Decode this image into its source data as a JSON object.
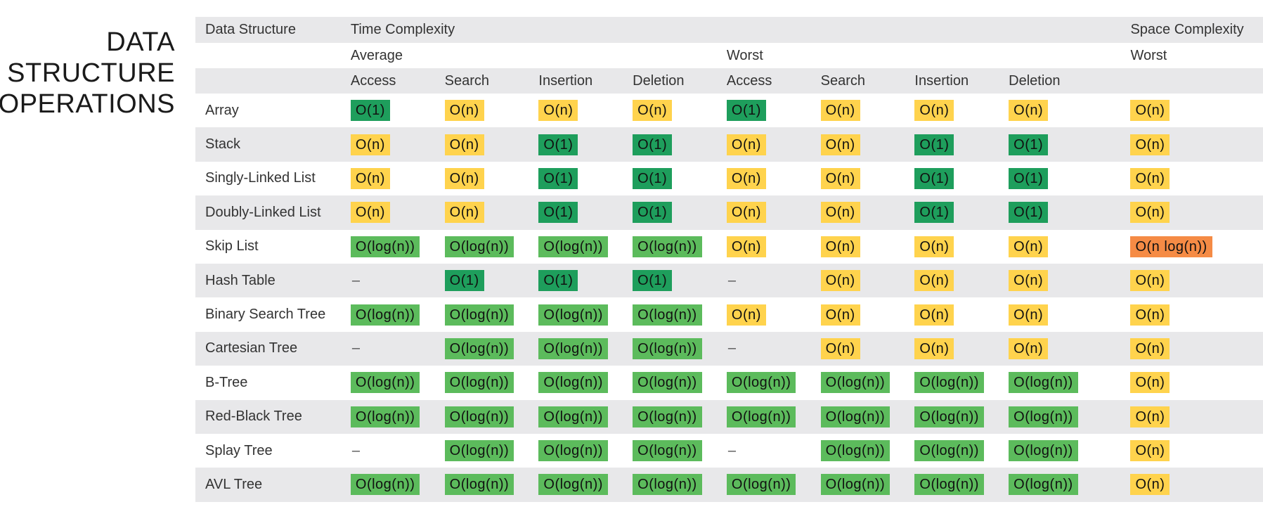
{
  "side_title": [
    "DATA",
    "STRUCTURE",
    "OPERATIONS"
  ],
  "header": {
    "data_structure": "Data Structure",
    "time_complexity": "Time Complexity",
    "space_complexity": "Space Complexity",
    "average": "Average",
    "worst": "Worst",
    "space_worst": "Worst",
    "ops": [
      "Access",
      "Search",
      "Insertion",
      "Deletion",
      "Access",
      "Search",
      "Insertion",
      "Deletion"
    ]
  },
  "colors": {
    "excellent": "#1e9e5c",
    "good": "#5cbb5c",
    "fair": "#ffd34d",
    "bad": "#f58b45",
    "row_shade": "#e8e8ea"
  },
  "rows": [
    {
      "name": "Array",
      "cells": [
        [
          "O(1)",
          "g1"
        ],
        [
          "O(n)",
          "y"
        ],
        [
          "O(n)",
          "y"
        ],
        [
          "O(n)",
          "y"
        ],
        [
          "O(1)",
          "g1"
        ],
        [
          "O(n)",
          "y"
        ],
        [
          "O(n)",
          "y"
        ],
        [
          "O(n)",
          "y"
        ],
        [
          "O(n)",
          "y"
        ]
      ]
    },
    {
      "name": "Stack",
      "cells": [
        [
          "O(n)",
          "y"
        ],
        [
          "O(n)",
          "y"
        ],
        [
          "O(1)",
          "g1"
        ],
        [
          "O(1)",
          "g1"
        ],
        [
          "O(n)",
          "y"
        ],
        [
          "O(n)",
          "y"
        ],
        [
          "O(1)",
          "g1"
        ],
        [
          "O(1)",
          "g1"
        ],
        [
          "O(n)",
          "y"
        ]
      ]
    },
    {
      "name": "Singly-Linked List",
      "cells": [
        [
          "O(n)",
          "y"
        ],
        [
          "O(n)",
          "y"
        ],
        [
          "O(1)",
          "g1"
        ],
        [
          "O(1)",
          "g1"
        ],
        [
          "O(n)",
          "y"
        ],
        [
          "O(n)",
          "y"
        ],
        [
          "O(1)",
          "g1"
        ],
        [
          "O(1)",
          "g1"
        ],
        [
          "O(n)",
          "y"
        ]
      ]
    },
    {
      "name": "Doubly-Linked List",
      "cells": [
        [
          "O(n)",
          "y"
        ],
        [
          "O(n)",
          "y"
        ],
        [
          "O(1)",
          "g1"
        ],
        [
          "O(1)",
          "g1"
        ],
        [
          "O(n)",
          "y"
        ],
        [
          "O(n)",
          "y"
        ],
        [
          "O(1)",
          "g1"
        ],
        [
          "O(1)",
          "g1"
        ],
        [
          "O(n)",
          "y"
        ]
      ]
    },
    {
      "name": "Skip List",
      "cells": [
        [
          "O(log(n))",
          "g2"
        ],
        [
          "O(log(n))",
          "g2"
        ],
        [
          "O(log(n))",
          "g2"
        ],
        [
          "O(log(n))",
          "g2"
        ],
        [
          "O(n)",
          "y"
        ],
        [
          "O(n)",
          "y"
        ],
        [
          "O(n)",
          "y"
        ],
        [
          "O(n)",
          "y"
        ],
        [
          "O(n log(n))",
          "o"
        ]
      ]
    },
    {
      "name": "Hash Table",
      "cells": [
        [
          "–",
          "dash"
        ],
        [
          "O(1)",
          "g1"
        ],
        [
          "O(1)",
          "g1"
        ],
        [
          "O(1)",
          "g1"
        ],
        [
          "–",
          "dash"
        ],
        [
          "O(n)",
          "y"
        ],
        [
          "O(n)",
          "y"
        ],
        [
          "O(n)",
          "y"
        ],
        [
          "O(n)",
          "y"
        ]
      ]
    },
    {
      "name": "Binary Search Tree",
      "cells": [
        [
          "O(log(n))",
          "g2"
        ],
        [
          "O(log(n))",
          "g2"
        ],
        [
          "O(log(n))",
          "g2"
        ],
        [
          "O(log(n))",
          "g2"
        ],
        [
          "O(n)",
          "y"
        ],
        [
          "O(n)",
          "y"
        ],
        [
          "O(n)",
          "y"
        ],
        [
          "O(n)",
          "y"
        ],
        [
          "O(n)",
          "y"
        ]
      ]
    },
    {
      "name": "Cartesian Tree",
      "cells": [
        [
          "–",
          "dash"
        ],
        [
          "O(log(n))",
          "g2"
        ],
        [
          "O(log(n))",
          "g2"
        ],
        [
          "O(log(n))",
          "g2"
        ],
        [
          "–",
          "dash"
        ],
        [
          "O(n)",
          "y"
        ],
        [
          "O(n)",
          "y"
        ],
        [
          "O(n)",
          "y"
        ],
        [
          "O(n)",
          "y"
        ]
      ]
    },
    {
      "name": "B-Tree",
      "cells": [
        [
          "O(log(n))",
          "g2"
        ],
        [
          "O(log(n))",
          "g2"
        ],
        [
          "O(log(n))",
          "g2"
        ],
        [
          "O(log(n))",
          "g2"
        ],
        [
          "O(log(n))",
          "g2"
        ],
        [
          "O(log(n))",
          "g2"
        ],
        [
          "O(log(n))",
          "g2"
        ],
        [
          "O(log(n))",
          "g2"
        ],
        [
          "O(n)",
          "y"
        ]
      ]
    },
    {
      "name": "Red-Black Tree",
      "cells": [
        [
          "O(log(n))",
          "g2"
        ],
        [
          "O(log(n))",
          "g2"
        ],
        [
          "O(log(n))",
          "g2"
        ],
        [
          "O(log(n))",
          "g2"
        ],
        [
          "O(log(n))",
          "g2"
        ],
        [
          "O(log(n))",
          "g2"
        ],
        [
          "O(log(n))",
          "g2"
        ],
        [
          "O(log(n))",
          "g2"
        ],
        [
          "O(n)",
          "y"
        ]
      ]
    },
    {
      "name": "Splay Tree",
      "cells": [
        [
          "–",
          "dash"
        ],
        [
          "O(log(n))",
          "g2"
        ],
        [
          "O(log(n))",
          "g2"
        ],
        [
          "O(log(n))",
          "g2"
        ],
        [
          "–",
          "dash"
        ],
        [
          "O(log(n))",
          "g2"
        ],
        [
          "O(log(n))",
          "g2"
        ],
        [
          "O(log(n))",
          "g2"
        ],
        [
          "O(n)",
          "y"
        ]
      ]
    },
    {
      "name": "AVL Tree",
      "cells": [
        [
          "O(log(n))",
          "g2"
        ],
        [
          "O(log(n))",
          "g2"
        ],
        [
          "O(log(n))",
          "g2"
        ],
        [
          "O(log(n))",
          "g2"
        ],
        [
          "O(log(n))",
          "g2"
        ],
        [
          "O(log(n))",
          "g2"
        ],
        [
          "O(log(n))",
          "g2"
        ],
        [
          "O(log(n))",
          "g2"
        ],
        [
          "O(n)",
          "y"
        ]
      ]
    }
  ]
}
